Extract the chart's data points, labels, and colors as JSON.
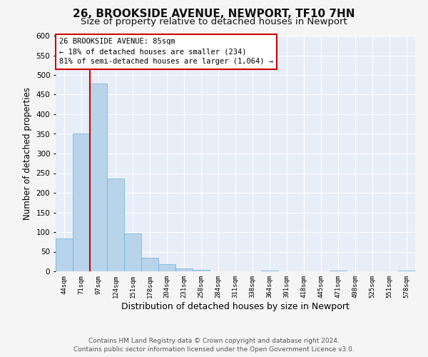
{
  "title": "26, BROOKSIDE AVENUE, NEWPORT, TF10 7HN",
  "subtitle": "Size of property relative to detached houses in Newport",
  "xlabel": "Distribution of detached houses by size in Newport",
  "ylabel": "Number of detached properties",
  "bin_labels": [
    "44sqm",
    "71sqm",
    "97sqm",
    "124sqm",
    "151sqm",
    "178sqm",
    "204sqm",
    "231sqm",
    "258sqm",
    "284sqm",
    "311sqm",
    "338sqm",
    "364sqm",
    "391sqm",
    "418sqm",
    "445sqm",
    "471sqm",
    "498sqm",
    "525sqm",
    "551sqm",
    "578sqm"
  ],
  "bin_values": [
    83,
    350,
    478,
    236,
    97,
    35,
    18,
    8,
    3,
    0,
    0,
    0,
    2,
    0,
    0,
    0,
    1,
    0,
    0,
    0,
    1
  ],
  "bar_color": "#b8d4ea",
  "bar_edgecolor": "#6aaed6",
  "vline_color": "#cc0000",
  "vline_x": 1.5,
  "ylim": [
    0,
    600
  ],
  "yticks": [
    0,
    50,
    100,
    150,
    200,
    250,
    300,
    350,
    400,
    450,
    500,
    550,
    600
  ],
  "annotation_title": "26 BROOKSIDE AVENUE: 85sqm",
  "annotation_line1": "← 18% of detached houses are smaller (234)",
  "annotation_line2": "81% of semi-detached houses are larger (1,064) →",
  "annotation_box_facecolor": "#ffffff",
  "annotation_box_edgecolor": "#cc0000",
  "footer_line1": "Contains HM Land Registry data © Crown copyright and database right 2024.",
  "footer_line2": "Contains public sector information licensed under the Open Government Licence v3.0.",
  "fig_facecolor": "#f5f5f5",
  "plot_facecolor": "#e8eef8",
  "grid_color": "#ffffff",
  "title_fontsize": 11,
  "subtitle_fontsize": 9.5,
  "xlabel_fontsize": 9,
  "ylabel_fontsize": 8.5,
  "footer_fontsize": 6.5
}
